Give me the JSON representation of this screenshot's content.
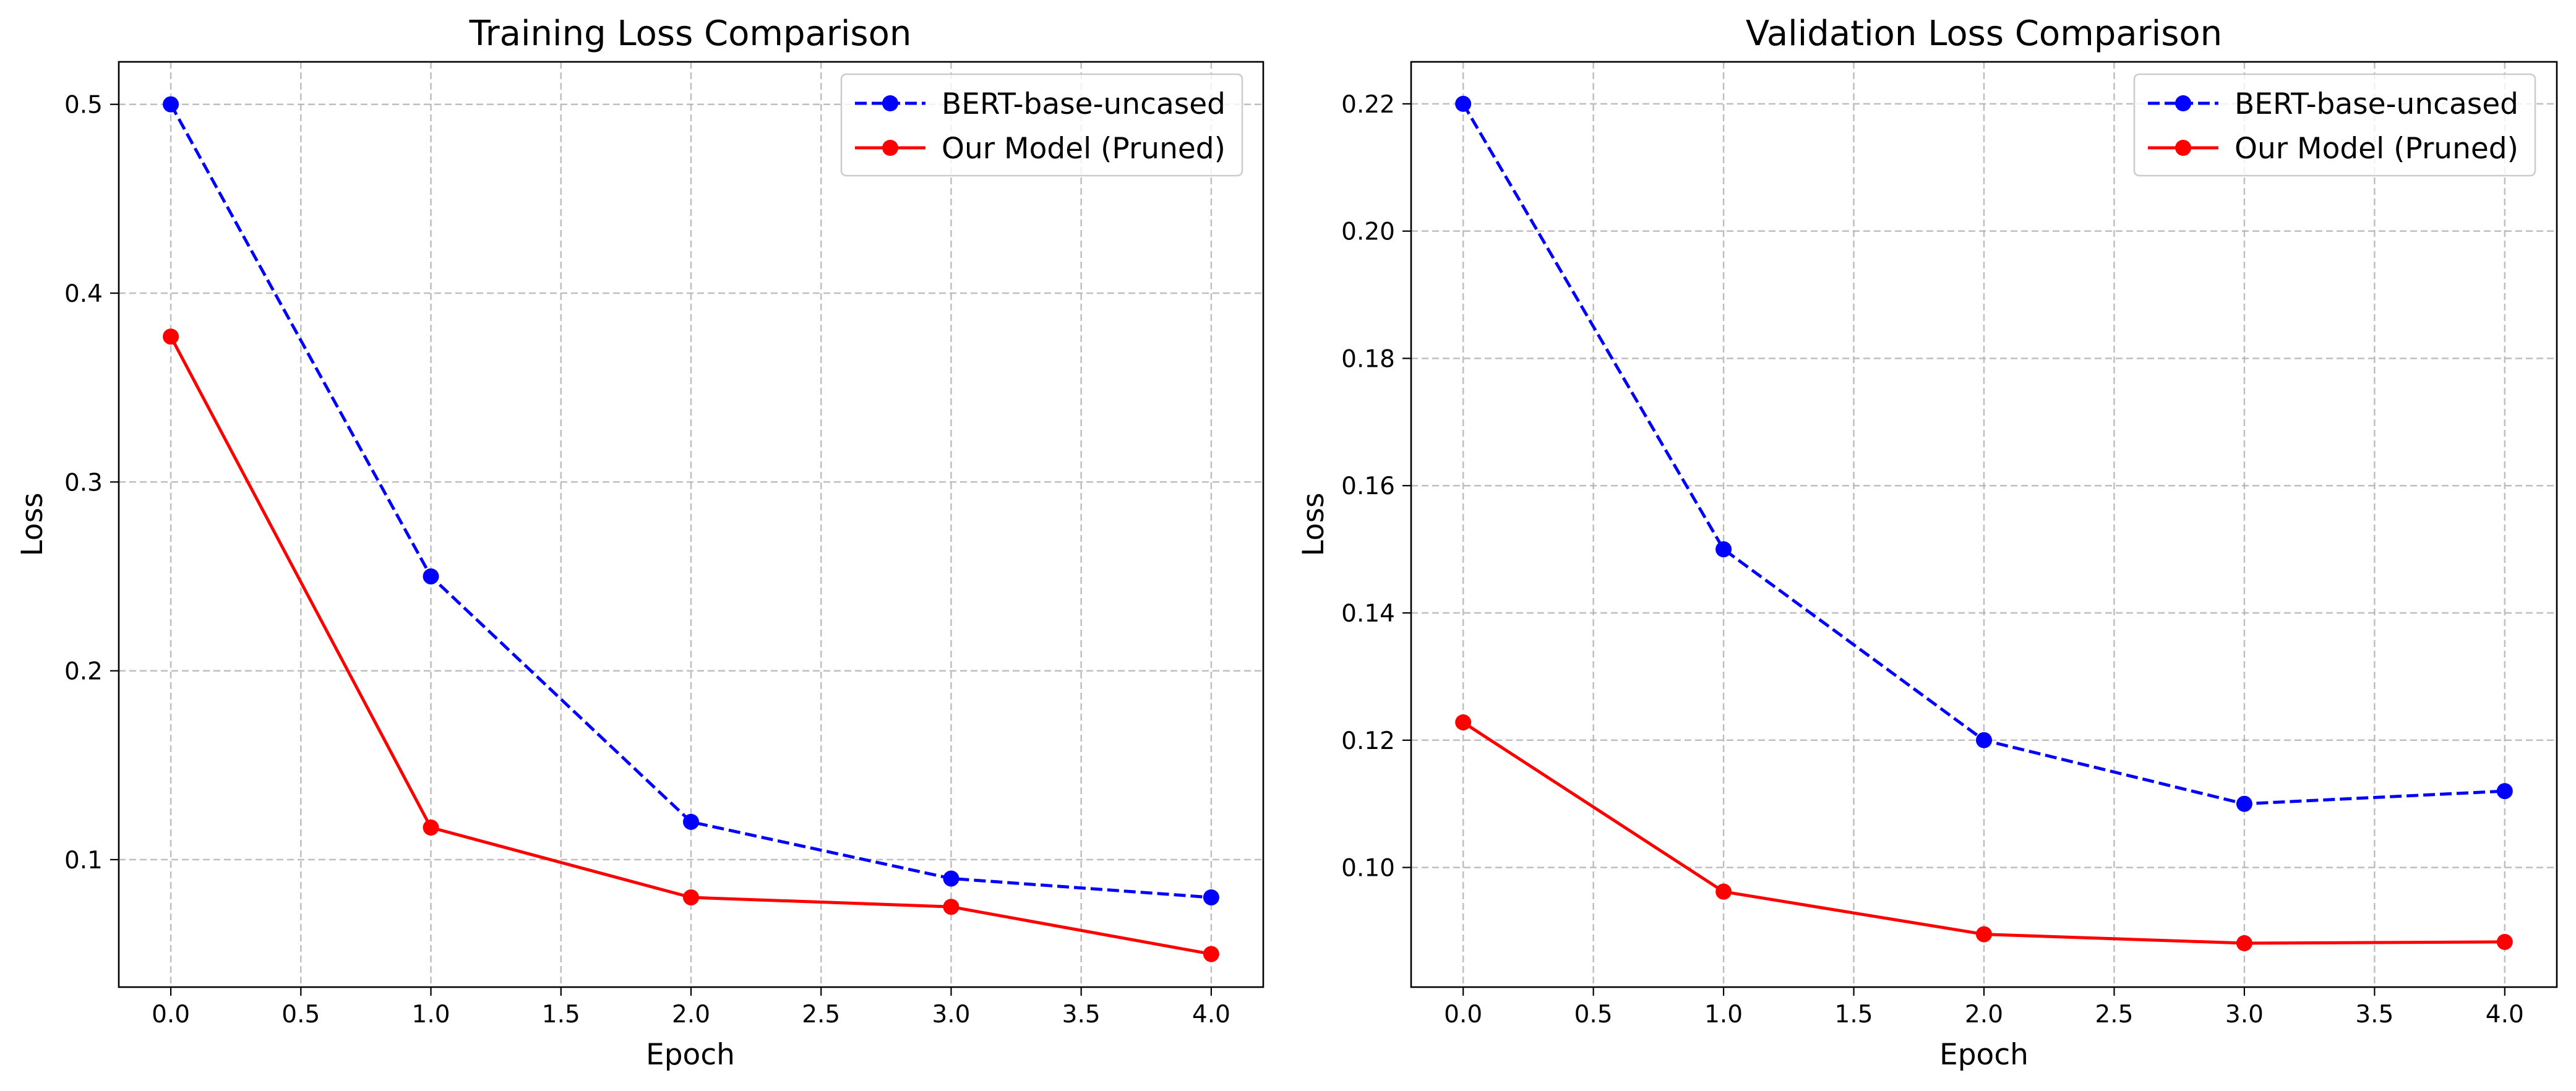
{
  "chart_data": [
    {
      "type": "line",
      "title": "Training Loss Comparison",
      "xlabel": "Epoch",
      "ylabel": "Loss",
      "x": [
        0,
        1,
        2,
        3,
        4
      ],
      "xlim": [
        -0.2,
        4.2
      ],
      "ylim": [
        0.0325,
        0.5225
      ],
      "xticks": [
        0.0,
        0.5,
        1.0,
        1.5,
        2.0,
        2.5,
        3.0,
        3.5,
        4.0
      ],
      "xtick_labels": [
        "0.0",
        "0.5",
        "1.0",
        "1.5",
        "2.0",
        "2.5",
        "3.0",
        "3.5",
        "4.0"
      ],
      "yticks": [
        0.1,
        0.2,
        0.3,
        0.4,
        0.5
      ],
      "ytick_labels": [
        "0.1",
        "0.2",
        "0.3",
        "0.4",
        "0.5"
      ],
      "grid": true,
      "legend_position": "top-right",
      "series": [
        {
          "name": "BERT-base-uncased",
          "color": "#0000ff",
          "line_style": "dashed",
          "marker": "circle",
          "values": [
            0.5,
            0.25,
            0.12,
            0.09,
            0.08
          ]
        },
        {
          "name": "Our Model (Pruned)",
          "color": "#ff0000",
          "line_style": "solid",
          "marker": "circle",
          "values": [
            0.377,
            0.117,
            0.08,
            0.075,
            0.05
          ]
        }
      ]
    },
    {
      "type": "line",
      "title": "Validation Loss Comparison",
      "xlabel": "Epoch",
      "ylabel": "Loss",
      "x": [
        0,
        1,
        2,
        3,
        4
      ],
      "xlim": [
        -0.2,
        4.2
      ],
      "ylim": [
        0.0812,
        0.2266
      ],
      "xticks": [
        0.0,
        0.5,
        1.0,
        1.5,
        2.0,
        2.5,
        3.0,
        3.5,
        4.0
      ],
      "xtick_labels": [
        "0.0",
        "0.5",
        "1.0",
        "1.5",
        "2.0",
        "2.5",
        "3.0",
        "3.5",
        "4.0"
      ],
      "yticks": [
        0.1,
        0.12,
        0.14,
        0.16,
        0.18,
        0.2,
        0.22
      ],
      "ytick_labels": [
        "0.10",
        "0.12",
        "0.14",
        "0.16",
        "0.18",
        "0.20",
        "0.22"
      ],
      "grid": true,
      "legend_position": "top-right",
      "series": [
        {
          "name": "BERT-base-uncased",
          "color": "#0000ff",
          "line_style": "dashed",
          "marker": "circle",
          "values": [
            0.22,
            0.15,
            0.12,
            0.11,
            0.112
          ]
        },
        {
          "name": "Our Model (Pruned)",
          "color": "#ff0000",
          "line_style": "solid",
          "marker": "circle",
          "values": [
            0.1228,
            0.0962,
            0.0895,
            0.0881,
            0.0883
          ]
        }
      ]
    }
  ]
}
